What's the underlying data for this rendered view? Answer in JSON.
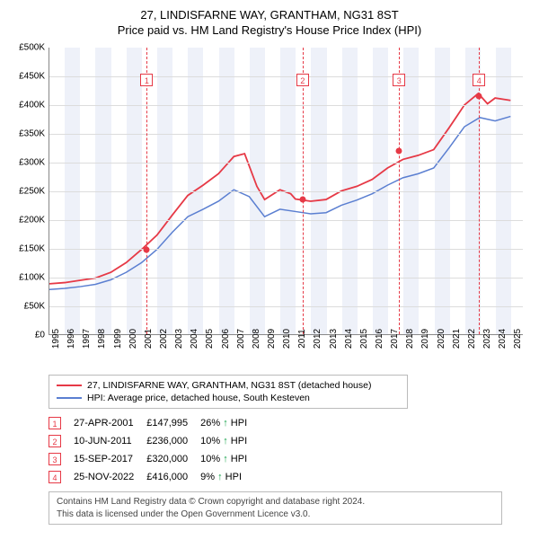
{
  "title": "27, LINDISFARNE WAY, GRANTHAM, NG31 8ST",
  "subtitle": "Price paid vs. HM Land Registry's House Price Index (HPI)",
  "chart": {
    "type": "line",
    "background_color": "#ffffff",
    "band_color": "#eef1f9",
    "grid_color": "#dcdcdc",
    "axis_color": "#888888",
    "label_fontsize": 10,
    "x_years": [
      1995,
      1996,
      1997,
      1998,
      1999,
      2000,
      2001,
      2002,
      2003,
      2004,
      2005,
      2006,
      2007,
      2008,
      2009,
      2010,
      2011,
      2012,
      2013,
      2014,
      2015,
      2016,
      2017,
      2018,
      2019,
      2020,
      2021,
      2022,
      2023,
      2024,
      2025
    ],
    "xlim": [
      1995,
      2025.8
    ],
    "ylim": [
      0,
      500000
    ],
    "ytick_step": 50000,
    "ytick_labels": [
      "£0",
      "£50K",
      "£100K",
      "£150K",
      "£200K",
      "£250K",
      "£300K",
      "£350K",
      "£400K",
      "£450K",
      "£500K"
    ],
    "series": [
      {
        "name": "27, LINDISFARNE WAY, GRANTHAM, NG31 8ST (detached house)",
        "color": "#e63946",
        "line_width": 1.8,
        "x": [
          1995,
          1996,
          1997,
          1998,
          1999,
          2000,
          2001,
          2002,
          2003,
          2004,
          2005,
          2006,
          2007,
          2007.7,
          2008.5,
          2009,
          2010,
          2010.7,
          2011,
          2012,
          2013,
          2014,
          2015,
          2016,
          2017,
          2018,
          2019,
          2020,
          2021,
          2022,
          2022.9,
          2023.5,
          2024,
          2025
        ],
        "y": [
          88000,
          90000,
          94000,
          98000,
          108000,
          125000,
          148000,
          173000,
          208000,
          242000,
          260000,
          280000,
          310000,
          315000,
          258000,
          235000,
          252000,
          245000,
          236000,
          232000,
          235000,
          250000,
          258000,
          270000,
          290000,
          305000,
          312000,
          322000,
          360000,
          400000,
          420000,
          402000,
          412000,
          408000
        ]
      },
      {
        "name": "HPI: Average price, detached house, South Kesteven",
        "color": "#5b7fd1",
        "line_width": 1.5,
        "x": [
          1995,
          1996,
          1997,
          1998,
          1999,
          2000,
          2001,
          2002,
          2003,
          2004,
          2005,
          2006,
          2007,
          2008,
          2009,
          2010,
          2011,
          2012,
          2013,
          2014,
          2015,
          2016,
          2017,
          2018,
          2019,
          2020,
          2021,
          2022,
          2023,
          2024,
          2025
        ],
        "y": [
          78000,
          80000,
          83000,
          87000,
          95000,
          108000,
          125000,
          148000,
          178000,
          205000,
          218000,
          232000,
          252000,
          240000,
          205000,
          218000,
          214000,
          210000,
          212000,
          225000,
          234000,
          245000,
          260000,
          273000,
          280000,
          290000,
          325000,
          362000,
          378000,
          372000,
          380000
        ]
      }
    ],
    "markers": [
      {
        "n": "1",
        "x": 2001.32,
        "y": 147995,
        "box_y": 45000
      },
      {
        "n": "2",
        "x": 2011.44,
        "y": 236000,
        "box_y": 45000
      },
      {
        "n": "3",
        "x": 2017.71,
        "y": 320000,
        "box_y": 45000
      },
      {
        "n": "4",
        "x": 2022.9,
        "y": 416000,
        "box_y": 45000
      }
    ],
    "marker_line_color": "#e63946",
    "marker_point_color": "#e63946"
  },
  "legend": {
    "items": [
      {
        "color": "#e63946",
        "label": "27, LINDISFARNE WAY, GRANTHAM, NG31 8ST (detached house)"
      },
      {
        "color": "#5b7fd1",
        "label": "HPI: Average price, detached house, South Kesteven"
      }
    ]
  },
  "sales": [
    {
      "n": "1",
      "date": "27-APR-2001",
      "price": "£147,995",
      "delta": "26% ↑ HPI"
    },
    {
      "n": "2",
      "date": "10-JUN-2011",
      "price": "£236,000",
      "delta": "10% ↑ HPI"
    },
    {
      "n": "3",
      "date": "15-SEP-2017",
      "price": "£320,000",
      "delta": "10% ↑ HPI"
    },
    {
      "n": "4",
      "date": "25-NOV-2022",
      "price": "£416,000",
      "delta": "9% ↑ HPI"
    }
  ],
  "footer_lines": [
    "Contains HM Land Registry data © Crown copyright and database right 2024.",
    "This data is licensed under the Open Government Licence v3.0."
  ]
}
